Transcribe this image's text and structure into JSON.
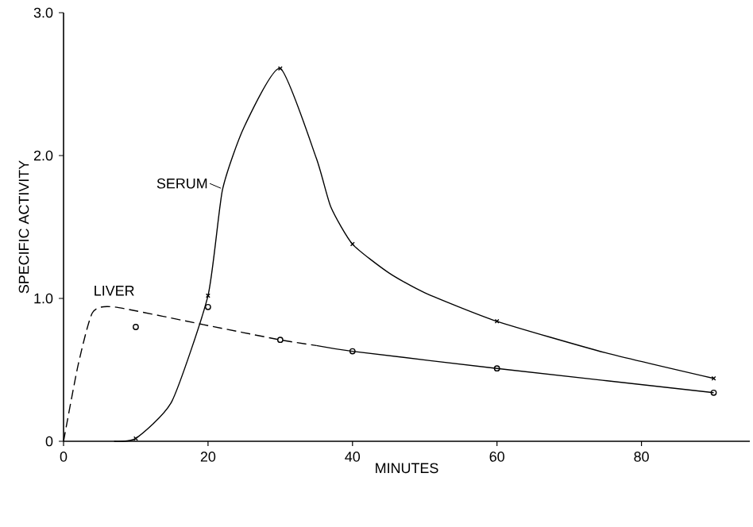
{
  "chart_data": {
    "type": "line",
    "xlabel": "MINUTES",
    "ylabel": "SPECIFIC ACTIVITY",
    "xlim": [
      0,
      95
    ],
    "ylim": [
      0,
      3.0
    ],
    "xticks": [
      0,
      20,
      40,
      60,
      80
    ],
    "yticks": [
      {
        "value": 0,
        "label": "0"
      },
      {
        "value": 1.0,
        "label": "1.0"
      },
      {
        "value": 2.0,
        "label": "2.0"
      },
      {
        "value": 3.0,
        "label": "3.0"
      }
    ],
    "grid": false,
    "series": [
      {
        "name": "SERUM",
        "type": "line",
        "color": "#000000",
        "line_style": "solid",
        "marker": "none",
        "x": [
          7,
          10,
          15,
          20,
          22,
          25,
          30,
          35,
          37,
          40,
          45,
          50,
          60,
          75,
          90
        ],
        "values": [
          0,
          0.02,
          0.28,
          1.02,
          1.76,
          2.2,
          2.61,
          1.98,
          1.64,
          1.38,
          1.18,
          1.04,
          0.84,
          0.62,
          0.44
        ]
      },
      {
        "type": "scatter",
        "color": "#000000",
        "marker": "cross",
        "x": [
          10,
          20,
          30,
          40,
          60,
          90
        ],
        "values": [
          0.02,
          1.02,
          2.61,
          1.38,
          0.84,
          0.44
        ]
      },
      {
        "name": "LIVER",
        "type": "line",
        "color": "#000000",
        "line_style": "dashed",
        "marker": "none",
        "x": [
          0,
          2,
          4,
          7,
          20,
          30,
          35
        ],
        "values": [
          0,
          0.53,
          0.9,
          0.94,
          0.81,
          0.71,
          0.67
        ]
      },
      {
        "type": "line",
        "color": "#000000",
        "line_style": "solid",
        "marker": "none",
        "x": [
          35,
          40,
          60,
          90
        ],
        "values": [
          0.67,
          0.63,
          0.51,
          0.34
        ]
      },
      {
        "type": "scatter",
        "color": "#000000",
        "marker": "circle",
        "x": [
          10,
          20,
          30,
          40,
          60,
          90
        ],
        "values": [
          0.8,
          0.94,
          0.71,
          0.63,
          0.51,
          0.34
        ]
      }
    ]
  }
}
